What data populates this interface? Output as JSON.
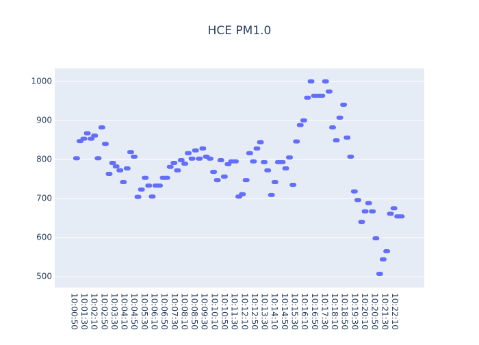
{
  "chart_data": {
    "type": "scatter",
    "title": "HCE PM1.0",
    "x": [
      "10:01:01",
      "10:01:15",
      "10:01:30",
      "10:01:44",
      "10:01:59",
      "10:02:13",
      "10:02:27",
      "10:02:42",
      "10:02:56",
      "10:03:11",
      "10:03:25",
      "10:03:39",
      "10:03:54",
      "10:04:08",
      "10:04:23",
      "10:04:37",
      "10:04:51",
      "10:05:06",
      "10:05:20",
      "10:05:35",
      "10:05:49",
      "10:06:03",
      "10:06:18",
      "10:06:32",
      "10:06:47",
      "10:07:01",
      "10:07:15",
      "10:07:30",
      "10:07:44",
      "10:07:59",
      "10:08:13",
      "10:08:27",
      "10:08:42",
      "10:08:56",
      "10:09:11",
      "10:09:25",
      "10:09:39",
      "10:09:54",
      "10:10:08",
      "10:10:23",
      "10:10:37",
      "10:10:51",
      "10:11:06",
      "10:11:20",
      "10:11:35",
      "10:11:49",
      "10:12:03",
      "10:12:18",
      "10:12:32",
      "10:12:47",
      "10:13:01",
      "10:13:15",
      "10:13:30",
      "10:13:44",
      "10:13:59",
      "10:14:13",
      "10:14:27",
      "10:14:42",
      "10:14:56",
      "10:15:11",
      "10:15:25",
      "10:15:39",
      "10:15:54",
      "10:16:08",
      "10:16:23",
      "10:16:37",
      "10:16:51",
      "10:17:06",
      "10:17:20",
      "10:17:35",
      "10:17:49",
      "10:18:03",
      "10:18:18",
      "10:18:32",
      "10:18:47",
      "10:19:01",
      "10:19:15",
      "10:19:30",
      "10:19:44",
      "10:19:59",
      "10:20:13",
      "10:20:27",
      "10:20:42",
      "10:20:56",
      "10:21:11",
      "10:21:25",
      "10:21:39",
      "10:21:54",
      "10:22:08",
      "10:22:23",
      "10:22:37"
    ],
    "values": [
      803,
      847,
      853,
      867,
      853,
      861,
      803,
      882,
      840,
      763,
      791,
      782,
      772,
      742,
      777,
      819,
      807,
      704,
      723,
      753,
      733,
      705,
      733,
      733,
      753,
      753,
      781,
      791,
      772,
      798,
      789,
      816,
      802,
      823,
      802,
      828,
      807,
      802,
      768,
      747,
      798,
      756,
      788,
      795,
      795,
      705,
      711,
      747,
      816,
      795,
      828,
      844,
      793,
      772,
      709,
      742,
      793,
      793,
      777,
      805,
      735,
      846,
      888,
      900,
      958,
      1000,
      963,
      963,
      963,
      1000,
      974,
      882,
      849,
      907,
      940,
      856,
      807,
      718,
      696,
      640,
      667,
      688,
      667,
      598,
      507,
      544,
      565,
      661,
      675,
      654,
      654
    ],
    "color": "#636efa",
    "xlim": [
      "09:59:34",
      "10:24:09"
    ],
    "xticks": [
      "10:00:50",
      "10:01:30",
      "10:02:10",
      "10:02:50",
      "10:03:30",
      "10:04:10",
      "10:04:50",
      "10:05:30",
      "10:06:10",
      "10:06:50",
      "10:07:30",
      "10:08:10",
      "10:08:50",
      "10:09:30",
      "10:10:10",
      "10:10:50",
      "10:11:30",
      "10:12:10",
      "10:12:50",
      "10:13:30",
      "10:14:10",
      "10:14:50",
      "10:15:30",
      "10:16:10",
      "10:16:50",
      "10:17:30",
      "10:18:10",
      "10:18:50",
      "10:19:30",
      "10:20:10",
      "10:20:50",
      "10:21:30",
      "10:22:10"
    ],
    "ylim": [
      472,
      1033
    ],
    "yticks": [
      500,
      600,
      700,
      800,
      900,
      1000
    ],
    "grid": true
  }
}
